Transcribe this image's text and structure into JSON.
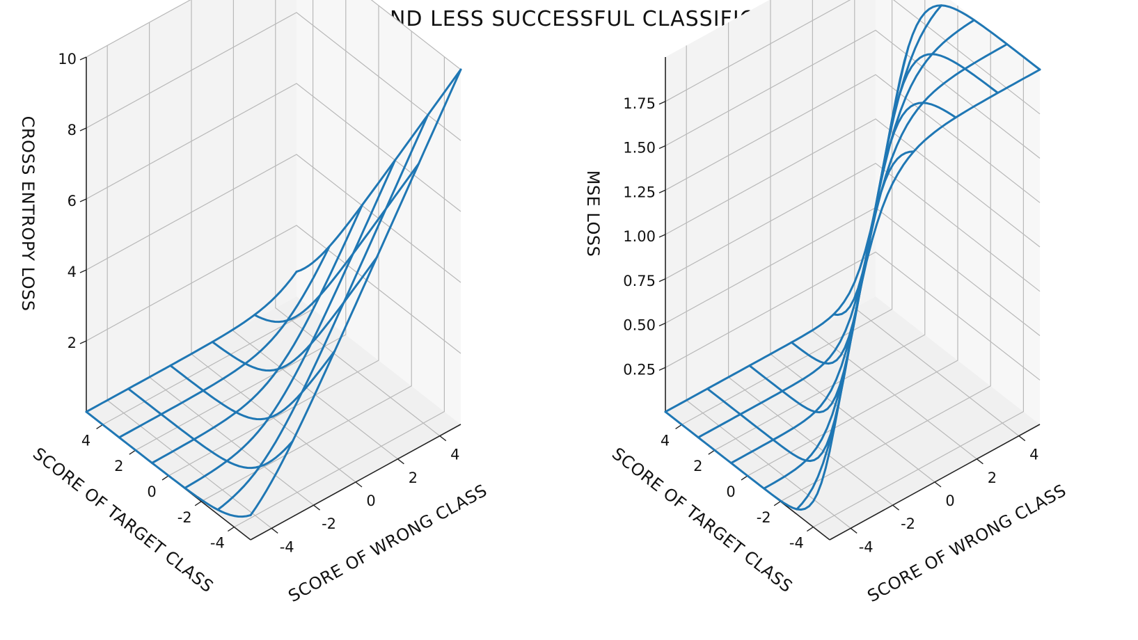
{
  "title": "SUCCESSFUL AND LESS SUCCESSFUL CLASSIFICATION LOSSES",
  "colors": {
    "surface": "#1f77b4",
    "pane": "#f2f2f2",
    "grid": "#b8b8b8"
  },
  "chart_data": [
    {
      "type": "surface3d",
      "style": "wireframe",
      "xlabel": "SCORE OF WRONG CLASS",
      "ylabel": "SCORE OF TARGET CLASS",
      "zlabel": "CROSS ENTROPY LOSS",
      "x_ticks": [
        -4,
        -2,
        0,
        2,
        4
      ],
      "y_ticks": [
        -4,
        -2,
        0,
        2,
        4
      ],
      "z_ticks": [
        2,
        4,
        6,
        8,
        10
      ],
      "xlim": [
        -5,
        5
      ],
      "ylim": [
        -5,
        5
      ],
      "zlim": [
        0,
        10
      ],
      "grid": true,
      "wire_grid": [
        -5,
        -3,
        -1,
        1,
        3,
        5
      ],
      "function": "log(1 + exp(x - y))"
    },
    {
      "type": "surface3d",
      "style": "wireframe",
      "xlabel": "SCORE OF WRONG CLASS",
      "ylabel": "SCORE OF TARGET CLASS",
      "zlabel": "MSE LOSS",
      "x_ticks": [
        -4,
        -2,
        0,
        2,
        4
      ],
      "y_ticks": [
        -4,
        -2,
        0,
        2,
        4
      ],
      "z_ticks": [
        "0.25",
        "0.50",
        "0.75",
        "1.00",
        "1.25",
        "1.50",
        "1.75"
      ],
      "xlim": [
        -5,
        5
      ],
      "ylim": [
        -5,
        5
      ],
      "zlim": [
        0,
        2
      ],
      "grid": true,
      "wire_grid": [
        -5,
        -3,
        -1,
        1,
        3,
        5
      ],
      "function": "2 * sigmoid(x - y)^2"
    }
  ]
}
